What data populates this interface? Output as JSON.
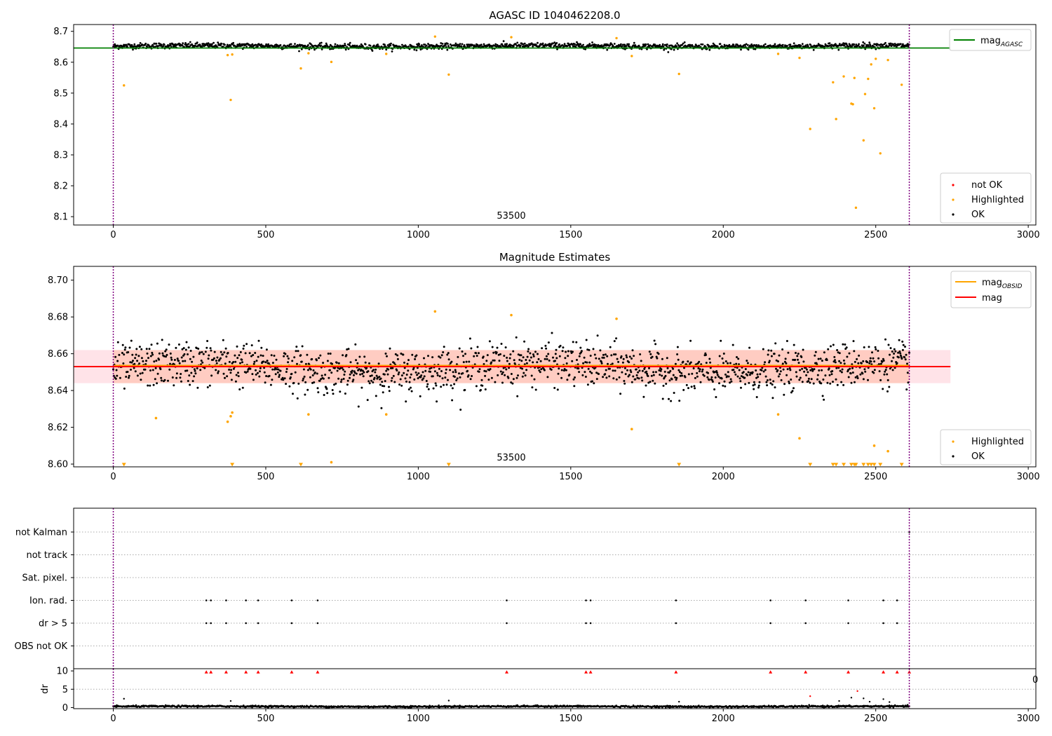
{
  "chart_data": [
    {
      "type": "scatter",
      "title": "AGASC ID 1040462208.0",
      "inner_label": "53500",
      "xlim": [
        -130,
        3025
      ],
      "ylim": [
        8.073,
        8.722
      ],
      "xticks": [
        "0",
        "500",
        "1000",
        "1500",
        "2000",
        "2500",
        "3000"
      ],
      "yticks": [
        "8.1",
        "8.2",
        "8.3",
        "8.4",
        "8.5",
        "8.6",
        "8.7"
      ],
      "vlines": [
        0,
        2610
      ],
      "legend_lines": [
        {
          "label": "mag",
          "sub": "AGASC",
          "color": "#008000"
        }
      ],
      "legend_points": [
        {
          "label": "not OK",
          "color": "#ff0000"
        },
        {
          "label": "Highlighted",
          "color": "#ffa500"
        },
        {
          "label": "OK",
          "color": "#000000"
        }
      ],
      "series": [
        {
          "name": "mag_AGASC",
          "kind": "hline",
          "y": 8.646,
          "x": [
            -130,
            2745
          ],
          "color": "#008000"
        },
        {
          "name": "OK",
          "kind": "dense",
          "color": "#000000",
          "x_range": [
            0,
            2610
          ],
          "y_mean": 8.652,
          "y_spread": 0.006
        },
        {
          "name": "Highlighted",
          "kind": "points",
          "color": "#ffa500",
          "x": [
            35,
            375,
            385,
            390,
            615,
            640,
            715,
            895,
            1055,
            1100,
            1305,
            1650,
            1700,
            1855,
            2180,
            2250,
            2285,
            2360,
            2370,
            2395,
            2420,
            2425,
            2430,
            2435,
            2460,
            2465,
            2475,
            2485,
            2495,
            2500,
            2515,
            2540,
            2585
          ],
          "y": [
            8.525,
            8.623,
            8.478,
            8.625,
            8.58,
            8.629,
            8.601,
            8.627,
            8.683,
            8.56,
            8.681,
            8.678,
            8.62,
            8.562,
            8.627,
            8.614,
            8.384,
            8.535,
            8.416,
            8.554,
            8.466,
            8.464,
            8.549,
            8.129,
            8.347,
            8.497,
            8.546,
            8.593,
            8.451,
            8.611,
            8.305,
            8.607,
            8.527
          ]
        }
      ]
    },
    {
      "type": "scatter",
      "title": "Magnitude Estimates",
      "inner_label": "53500",
      "xlim": [
        -130,
        3025
      ],
      "ylim": [
        8.5985,
        8.7075
      ],
      "xticks": [
        "0",
        "500",
        "1000",
        "1500",
        "2000",
        "2500",
        "3000"
      ],
      "yticks": [
        "8.60",
        "8.62",
        "8.64",
        "8.66",
        "8.68",
        "8.70"
      ],
      "vlines": [
        0,
        2610
      ],
      "legend_lines": [
        {
          "label": "mag",
          "sub": "OBSID",
          "color": "#ffa500"
        },
        {
          "label": "mag",
          "sub": "",
          "color": "#ff0000"
        }
      ],
      "legend_points": [
        {
          "label": "Highlighted",
          "color": "#ffa500"
        },
        {
          "label": "OK",
          "color": "#000000"
        }
      ],
      "band": {
        "y_low": 8.644,
        "y_high": 8.662,
        "x": [
          -130,
          2745
        ],
        "color": "#ffc0cb"
      },
      "series": [
        {
          "name": "mag_OBSID",
          "kind": "hline",
          "y": 8.6535,
          "x": [
            0,
            2610
          ],
          "color": "#ffa500"
        },
        {
          "name": "mag",
          "kind": "hline",
          "y": 8.653,
          "x": [
            -130,
            2745
          ],
          "color": "#ff0000"
        },
        {
          "name": "OK",
          "kind": "dense",
          "color": "#000000",
          "x_range": [
            0,
            2610
          ],
          "y_mean": 8.652,
          "y_spread": 0.008
        },
        {
          "name": "Highlighted",
          "kind": "points",
          "color": "#ffa500",
          "x": [
            140,
            375,
            385,
            390,
            640,
            715,
            895,
            1055,
            1305,
            1650,
            1700,
            2180,
            2250,
            2495,
            2540
          ],
          "y": [
            8.625,
            8.623,
            8.626,
            8.628,
            8.627,
            8.601,
            8.627,
            8.683,
            8.681,
            8.679,
            8.619,
            8.627,
            8.614,
            8.61,
            8.607
          ]
        },
        {
          "name": "Highlighted (clipped)",
          "kind": "markers",
          "color": "#ffa500",
          "x": [
            35,
            390,
            615,
            1100,
            1855,
            2285,
            2360,
            2370,
            2395,
            2420,
            2430,
            2435,
            2460,
            2475,
            2485,
            2495,
            2515,
            2585
          ],
          "y": 8.5995
        }
      ]
    },
    {
      "type": "scatter",
      "xlim": [
        -130,
        3025
      ],
      "categories": [
        "not Kalman",
        "not track",
        "Sat. pixel.",
        "Ion. rad.",
        "dr > 5",
        "OBS not OK"
      ],
      "flag_x": [
        305,
        320,
        370,
        435,
        475,
        585,
        670,
        1290,
        1550,
        1565,
        1845,
        2155,
        2270,
        2410,
        2525,
        2570
      ],
      "flag_rows": [
        "Ion. rad.",
        "dr > 5"
      ],
      "not_kalman_x": [
        2610
      ],
      "vlines": [
        0,
        2610
      ],
      "sub": {
        "ylabel": "dr",
        "ylim": [
          -0.3,
          10.6
        ],
        "yticks": [
          "0",
          "5",
          "10"
        ],
        "overflow_label": "0",
        "red_markers_y": 9.7,
        "series": [
          {
            "name": "dr",
            "kind": "dense",
            "color": "#000000",
            "x_range": [
              0,
              2610
            ],
            "y_mean": 0.3,
            "y_spread": 0.15
          },
          {
            "name": "dr spikes",
            "kind": "points",
            "color": "#000000",
            "x": [
              35,
              385,
              1100,
              1855,
              2380,
              2420,
              2460,
              2480,
              2525,
              2545
            ],
            "y": [
              2.4,
              1.8,
              1.9,
              1.6,
              1.8,
              2.7,
              2.5,
              1.6,
              2.3,
              1.5
            ]
          },
          {
            "name": "dr high",
            "kind": "points",
            "color": "#ff0000",
            "x": [
              2285,
              2440
            ],
            "y": [
              3.1,
              4.5
            ]
          }
        ],
        "xticks": [
          "0",
          "500",
          "1000",
          "1500",
          "2000",
          "2500",
          "3000"
        ]
      }
    }
  ]
}
